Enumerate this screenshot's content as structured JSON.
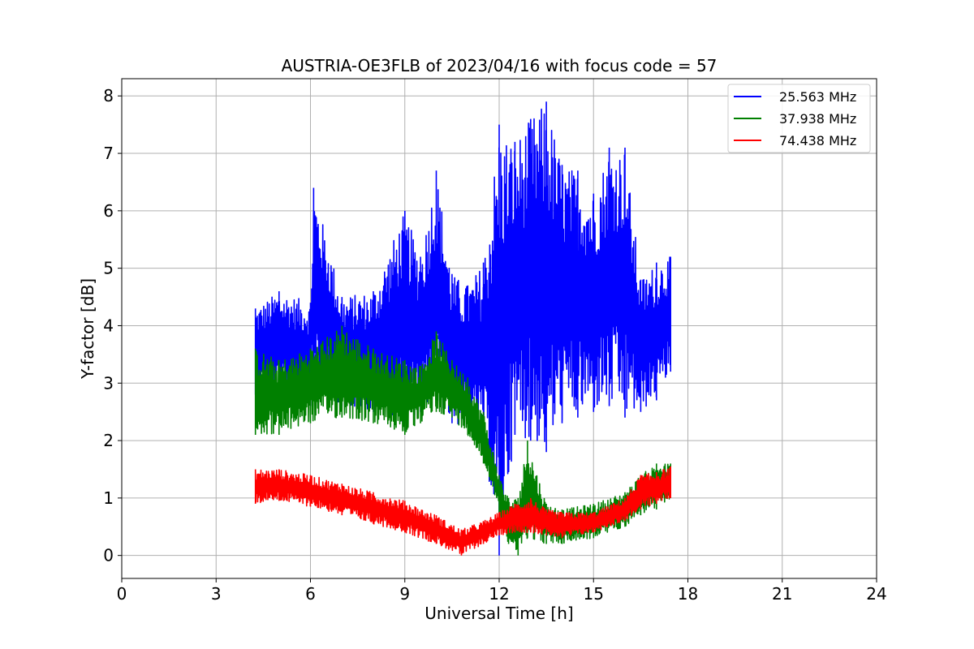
{
  "chart_data": {
    "type": "line",
    "title": "AUSTRIA-OE3FLB of 2023/04/16 with focus code = 57",
    "xlabel": "Universal Time [h]",
    "ylabel": "Y-factor [dB]",
    "xlim": [
      0,
      24
    ],
    "ylim": [
      -0.4,
      8.3
    ],
    "xticks": [
      0,
      3,
      6,
      9,
      12,
      15,
      18,
      21,
      24
    ],
    "yticks": [
      0,
      1,
      2,
      3,
      4,
      5,
      6,
      7,
      8
    ],
    "grid": true,
    "legend_position": "top-right",
    "series": [
      {
        "name": "25.563 MHz",
        "color": "#0000ff",
        "x": [
          4.25,
          5,
          6,
          6.1,
          7,
          8,
          9,
          9.5,
          10,
          10.5,
          11,
          11.5,
          12,
          12.5,
          13,
          13.5,
          14,
          14.5,
          15,
          15.5,
          16,
          16.5,
          17,
          17.45
        ],
        "y_low": [
          2.8,
          2.8,
          2.6,
          3.0,
          2.6,
          2.5,
          2.3,
          2.5,
          2.7,
          2.3,
          2.2,
          2.0,
          0.0,
          2.1,
          2.0,
          1.8,
          2.3,
          2.4,
          2.5,
          2.6,
          2.4,
          2.5,
          2.7,
          3.2
        ],
        "y_high": [
          4.3,
          4.6,
          4.4,
          6.4,
          4.5,
          4.6,
          6.0,
          5.2,
          6.7,
          4.9,
          4.7,
          5.1,
          7.5,
          7.2,
          7.6,
          7.9,
          6.8,
          6.7,
          6.3,
          7.1,
          7.1,
          4.8,
          5.1,
          5.2
        ]
      },
      {
        "name": "37.938 MHz",
        "color": "#008000",
        "x": [
          4.25,
          5,
          6,
          7,
          8,
          9,
          9.5,
          10,
          10.5,
          11,
          11.5,
          11.8,
          12,
          12.3,
          12.6,
          12.9,
          13.5,
          14,
          15,
          16,
          16.5,
          17,
          17.45
        ],
        "y_low": [
          2.1,
          2.1,
          2.3,
          2.4,
          2.3,
          2.1,
          2.3,
          2.5,
          2.4,
          2.1,
          1.6,
          1.2,
          0.7,
          0.2,
          0.0,
          0.3,
          0.2,
          0.2,
          0.3,
          0.5,
          0.7,
          0.8,
          1.0
        ],
        "y_high": [
          3.6,
          3.4,
          3.6,
          4.0,
          3.6,
          3.4,
          3.3,
          3.9,
          3.4,
          3.1,
          2.5,
          1.8,
          1.4,
          1.0,
          1.0,
          2.0,
          0.9,
          0.8,
          0.9,
          1.1,
          1.4,
          1.6,
          1.6
        ]
      },
      {
        "name": "74.438 MHz",
        "color": "#ff0000",
        "x": [
          4.25,
          5,
          6,
          7,
          8,
          9,
          10,
          10.8,
          11.5,
          12,
          12.5,
          13,
          13.5,
          14,
          15,
          16,
          16.5,
          17,
          17.45
        ],
        "y_low": [
          0.9,
          0.95,
          0.85,
          0.7,
          0.55,
          0.4,
          0.2,
          0.0,
          0.2,
          0.35,
          0.4,
          0.4,
          0.35,
          0.3,
          0.4,
          0.6,
          0.8,
          0.9,
          1.0
        ],
        "y_high": [
          1.5,
          1.5,
          1.4,
          1.25,
          1.1,
          0.95,
          0.7,
          0.45,
          0.6,
          0.75,
          0.9,
          1.0,
          0.8,
          0.75,
          0.75,
          1.0,
          1.4,
          1.45,
          1.55
        ]
      }
    ]
  }
}
